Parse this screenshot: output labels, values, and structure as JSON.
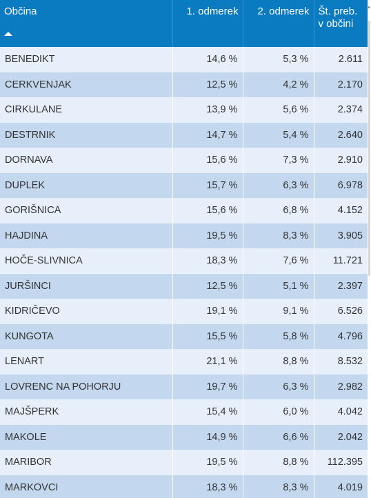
{
  "table": {
    "headers": {
      "municipality": "Občina",
      "first": "1. odmerek",
      "second": "2. odmerek",
      "population_line1": "Št. preb.",
      "population_line2": "v občini"
    },
    "sort": {
      "column": "municipality",
      "direction": "ascending",
      "icon": "sort-ascending-icon"
    },
    "rows": [
      {
        "name": "BENEDIKT",
        "first": "14,6 %",
        "second": "5,3 %",
        "population": "2.611"
      },
      {
        "name": "CERKVENJAK",
        "first": "12,5 %",
        "second": "4,2 %",
        "population": "2.170"
      },
      {
        "name": "CIRKULANE",
        "first": "13,9 %",
        "second": "5,6 %",
        "population": "2.374"
      },
      {
        "name": "DESTRNIK",
        "first": "14,7 %",
        "second": "5,4 %",
        "population": "2.640"
      },
      {
        "name": "DORNAVA",
        "first": "15,6 %",
        "second": "7,3 %",
        "population": "2.910"
      },
      {
        "name": "DUPLEK",
        "first": "15,7 %",
        "second": "6,3 %",
        "population": "6.978"
      },
      {
        "name": "GORIŠNICA",
        "first": "15,6 %",
        "second": "6,8 %",
        "population": "4.152"
      },
      {
        "name": "HAJDINA",
        "first": "19,5 %",
        "second": "8,3 %",
        "population": "3.905"
      },
      {
        "name": "HOČE-SLIVNICA",
        "first": "18,3 %",
        "second": "7,6 %",
        "population": "11.721"
      },
      {
        "name": "JURŠINCI",
        "first": "12,5 %",
        "second": "5,1 %",
        "population": "2.397"
      },
      {
        "name": "KIDRIČEVO",
        "first": "19,1 %",
        "second": "9,1 %",
        "population": "6.526"
      },
      {
        "name": "KUNGOTA",
        "first": "15,5 %",
        "second": "5,8 %",
        "population": "4.796"
      },
      {
        "name": "LENART",
        "first": "21,1 %",
        "second": "8,8 %",
        "population": "8.532"
      },
      {
        "name": "LOVRENC NA POHORJU",
        "first": "19,7 %",
        "second": "6,3 %",
        "population": "2.982"
      },
      {
        "name": "MAJŠPERK",
        "first": "15,4 %",
        "second": "6,0 %",
        "population": "4.042"
      },
      {
        "name": "MAKOLE",
        "first": "14,9 %",
        "second": "6,6 %",
        "population": "2.042"
      },
      {
        "name": "MARIBOR",
        "first": "19,5 %",
        "second": "8,8 %",
        "population": "112.395"
      },
      {
        "name": "MARKOVCI",
        "first": "18,3 %",
        "second": "8,3 %",
        "population": "4.019"
      }
    ]
  },
  "colors": {
    "header_bg": "#0a7bc1",
    "row_light": "#e6effa",
    "row_dark": "#c3d8ef",
    "text": "#333333"
  }
}
